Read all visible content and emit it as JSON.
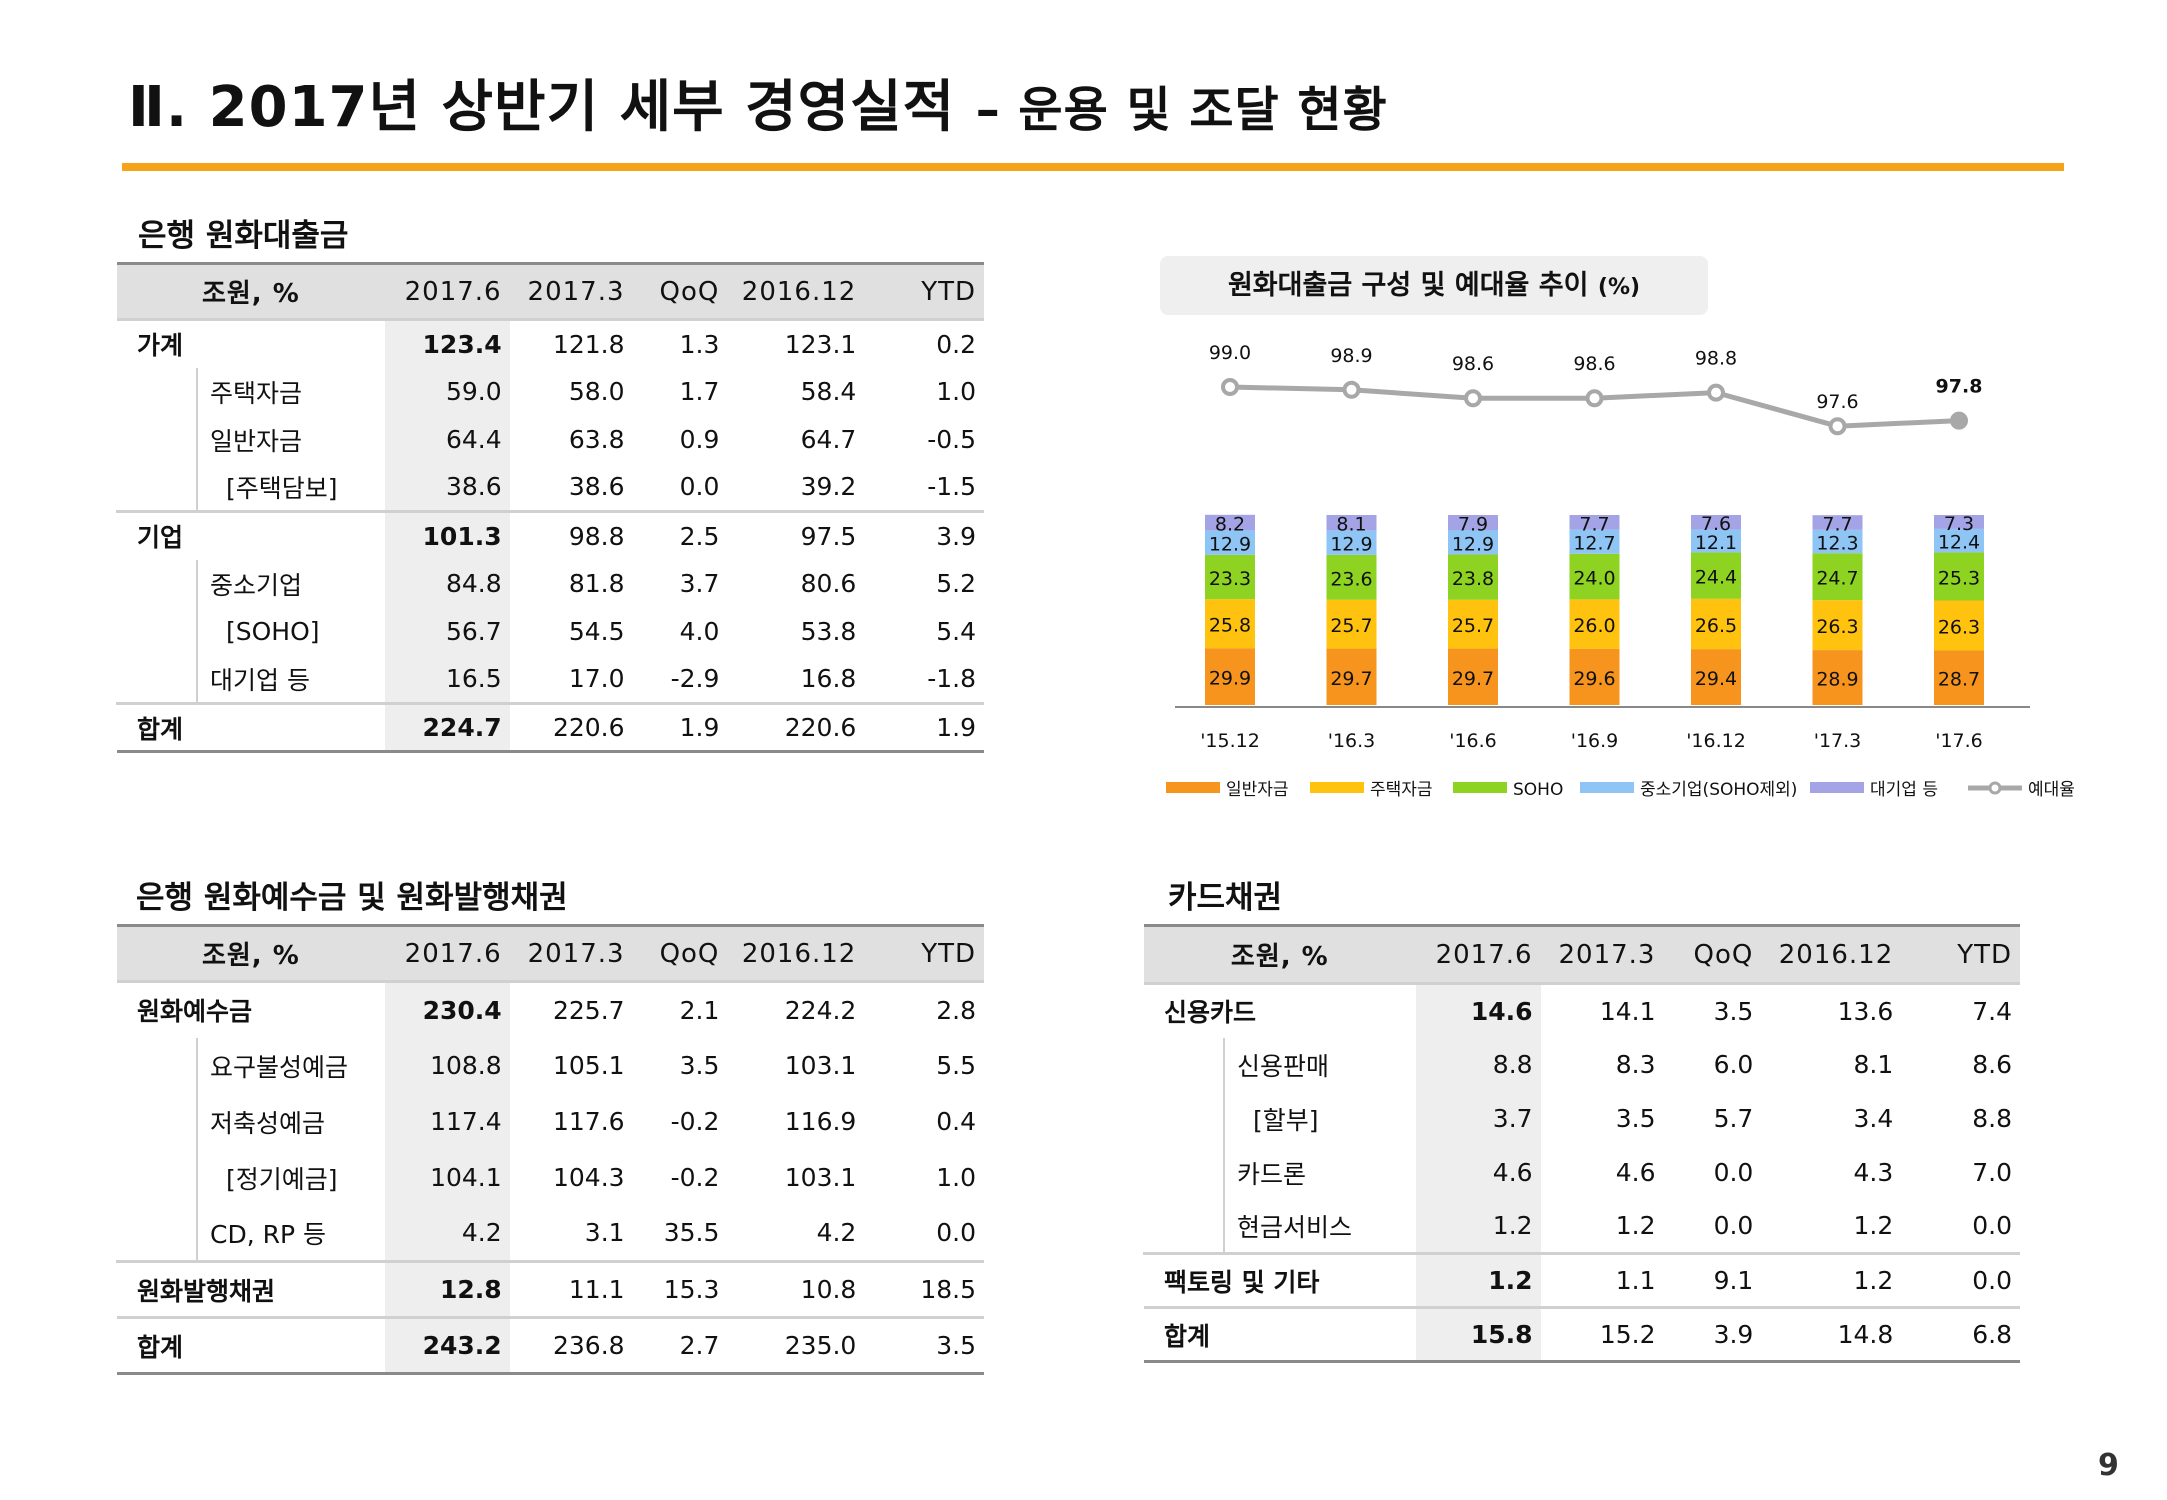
{
  "header": {
    "title_main": "Ⅱ. 2017년 상반기 세부 경영실적",
    "title_sub": "– 운용 및 조달 현황"
  },
  "colors": {
    "accent": "#f5a31a"
  },
  "page_number": "9",
  "loans_section": {
    "title": "은행 원화대출금",
    "headers": [
      "조원, %",
      "2017.6",
      "2017.3",
      "QoQ",
      "2016.12",
      "YTD"
    ],
    "rows": [
      {
        "label": "가계",
        "level": "cat",
        "values": [
          "123.4",
          "121.8",
          "1.3",
          "123.1",
          "0.2"
        ]
      },
      {
        "label": "주택자금",
        "level": "sub",
        "values": [
          "59.0",
          "58.0",
          "1.7",
          "58.4",
          "1.0"
        ]
      },
      {
        "label": "일반자금",
        "level": "sub",
        "values": [
          "64.4",
          "63.8",
          "0.9",
          "64.7",
          "-0.5"
        ]
      },
      {
        "label": "[주택담보]",
        "level": "sub2",
        "values": [
          "38.6",
          "38.6",
          "0.0",
          "39.2",
          "-1.5"
        ]
      },
      {
        "label": "기업",
        "level": "cat",
        "values": [
          "101.3",
          "98.8",
          "2.5",
          "97.5",
          "3.9"
        ]
      },
      {
        "label": "중소기업",
        "level": "sub",
        "values": [
          "84.8",
          "81.8",
          "3.7",
          "80.6",
          "5.2"
        ]
      },
      {
        "label": "[SOHO]",
        "level": "sub2",
        "values": [
          "56.7",
          "54.5",
          "4.0",
          "53.8",
          "5.4"
        ]
      },
      {
        "label": "대기업 등",
        "level": "sub",
        "values": [
          "16.5",
          "17.0",
          "-2.9",
          "16.8",
          "-1.8"
        ]
      },
      {
        "label": "합계",
        "level": "cat",
        "values": [
          "224.7",
          "220.6",
          "1.9",
          "220.6",
          "1.9"
        ]
      }
    ]
  },
  "deposits_section": {
    "title": "은행 원화예수금 및 원화발행채권",
    "headers": [
      "조원, %",
      "2017.6",
      "2017.3",
      "QoQ",
      "2016.12",
      "YTD"
    ],
    "rows": [
      {
        "label": "원화예수금",
        "level": "cat",
        "values": [
          "230.4",
          "225.7",
          "2.1",
          "224.2",
          "2.8"
        ]
      },
      {
        "label": "요구불성예금",
        "level": "sub",
        "values": [
          "108.8",
          "105.1",
          "3.5",
          "103.1",
          "5.5"
        ]
      },
      {
        "label": "저축성예금",
        "level": "sub",
        "values": [
          "117.4",
          "117.6",
          "-0.2",
          "116.9",
          "0.4"
        ]
      },
      {
        "label": "[정기예금]",
        "level": "sub2",
        "values": [
          "104.1",
          "104.3",
          "-0.2",
          "103.1",
          "1.0"
        ]
      },
      {
        "label": "CD, RP 등",
        "level": "sub",
        "values": [
          "4.2",
          "3.1",
          "35.5",
          "4.2",
          "0.0"
        ]
      },
      {
        "label": "원화발행채권",
        "level": "cat",
        "values": [
          "12.8",
          "11.1",
          "15.3",
          "10.8",
          "18.5"
        ]
      },
      {
        "label": "합계",
        "level": "cat",
        "values": [
          "243.2",
          "236.8",
          "2.7",
          "235.0",
          "3.5"
        ]
      }
    ]
  },
  "card_section": {
    "title": "카드채권",
    "headers": [
      "조원, %",
      "2017.6",
      "2017.3",
      "QoQ",
      "2016.12",
      "YTD"
    ],
    "rows": [
      {
        "label": "신용카드",
        "level": "cat",
        "values": [
          "14.6",
          "14.1",
          "3.5",
          "13.6",
          "7.4"
        ]
      },
      {
        "label": "신용판매",
        "level": "sub",
        "values": [
          "8.8",
          "8.3",
          "6.0",
          "8.1",
          "8.6"
        ]
      },
      {
        "label": "[할부]",
        "level": "sub2",
        "values": [
          "3.7",
          "3.5",
          "5.7",
          "3.4",
          "8.8"
        ]
      },
      {
        "label": "카드론",
        "level": "sub",
        "values": [
          "4.6",
          "4.6",
          "0.0",
          "4.3",
          "7.0"
        ]
      },
      {
        "label": "현금서비스",
        "level": "sub",
        "values": [
          "1.2",
          "1.2",
          "0.0",
          "1.2",
          "0.0"
        ]
      },
      {
        "label": "팩토링 및 기타",
        "level": "cat",
        "values": [
          "1.2",
          "1.1",
          "9.1",
          "1.2",
          "0.0"
        ]
      },
      {
        "label": "합계",
        "level": "cat",
        "values": [
          "15.8",
          "15.2",
          "3.9",
          "14.8",
          "6.8"
        ]
      }
    ]
  },
  "chart_data": {
    "type": "bar",
    "stacked": true,
    "title": "원화대출금 구성 및 예대율 추이",
    "title_unit": "(%)",
    "categories": [
      "'15.12",
      "'16.3",
      "'16.6",
      "'16.9",
      "'16.12",
      "'17.3",
      "'17.6"
    ],
    "series": [
      {
        "name": "일반자금",
        "color": "#f7941d",
        "values": [
          29.9,
          29.7,
          29.7,
          29.6,
          29.4,
          28.9,
          28.7
        ]
      },
      {
        "name": "주택자금",
        "color": "#ffc20e",
        "values": [
          25.8,
          25.7,
          25.7,
          26.0,
          26.5,
          26.3,
          26.3
        ]
      },
      {
        "name": "SOHO",
        "color": "#8ed321",
        "values": [
          23.3,
          23.6,
          23.8,
          24.0,
          24.4,
          24.7,
          25.3
        ]
      },
      {
        "name": "중소기업(SOHO제외)",
        "color": "#8ec5f5",
        "values": [
          12.9,
          12.9,
          12.9,
          12.7,
          12.1,
          12.3,
          12.4
        ]
      },
      {
        "name": "대기업 등",
        "color": "#a3a3e6",
        "values": [
          8.2,
          8.1,
          7.9,
          7.7,
          7.6,
          7.7,
          7.3
        ]
      }
    ],
    "line_series": {
      "name": "예대율",
      "color": "#a8a8a8",
      "values": [
        99.0,
        98.9,
        98.6,
        98.6,
        98.8,
        97.6,
        97.8
      ]
    },
    "legend_position": "bottom",
    "grid": false
  }
}
